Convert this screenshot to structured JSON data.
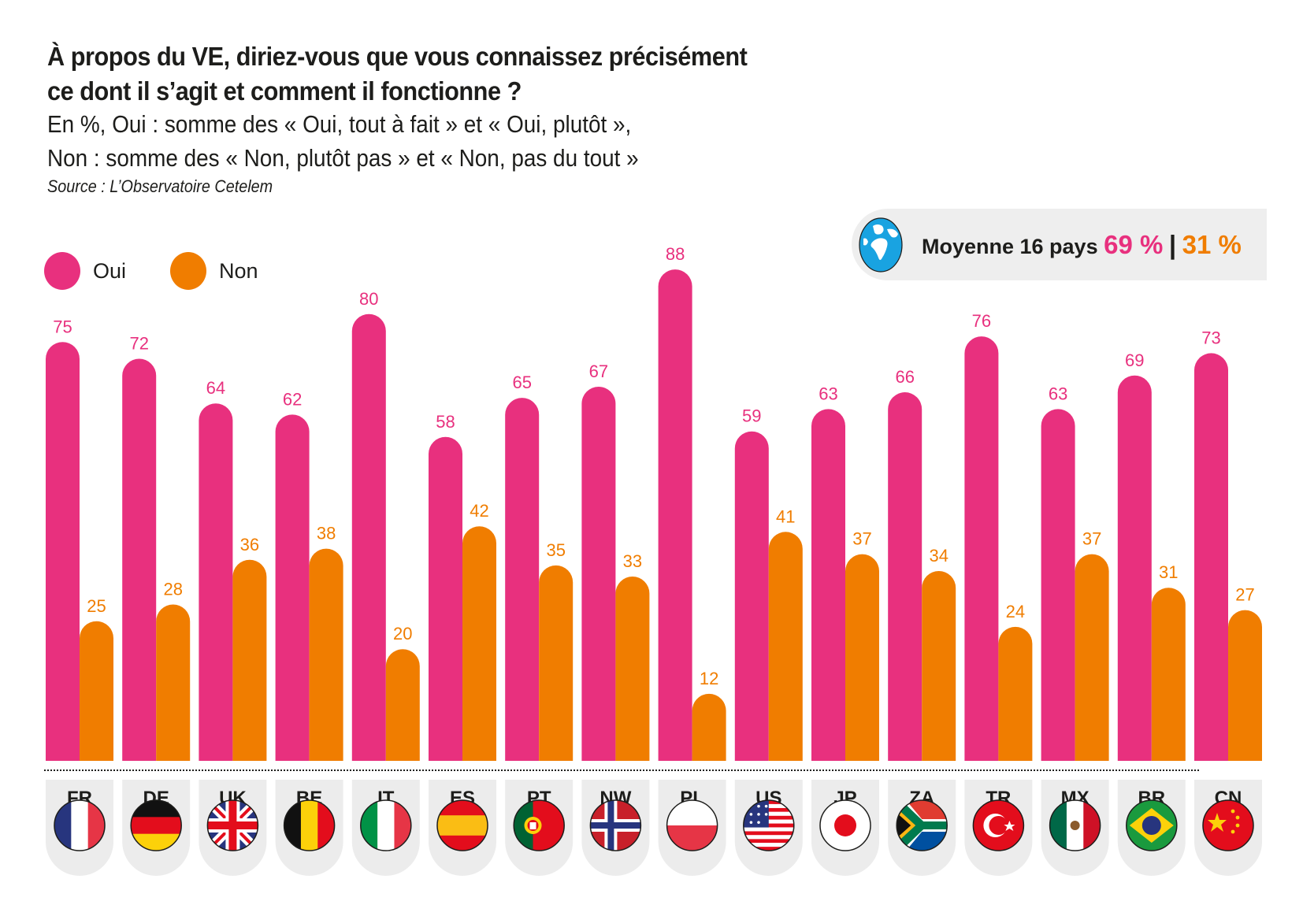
{
  "header": {
    "title": "À propos du VE, diriez-vous que vous connaissez précisément ce dont il s’agit et comment il fonctionne ?",
    "subtitle_line1": "En %, Oui : somme des « Oui, tout à fait » et « Oui, plutôt »,",
    "subtitle_line2": "Non : somme des « Non, plutôt pas » et « Non, pas du tout »",
    "source": "Source : L’Observatoire Cetelem"
  },
  "legend": [
    {
      "label": "Oui",
      "color": "#e8307e"
    },
    {
      "label": "Non",
      "color": "#f07d00"
    }
  ],
  "average": {
    "icon": "globe-icon",
    "label": "Moyenne 16 pays",
    "oui": "69 %",
    "separator": "|",
    "non": "31 %"
  },
  "colors": {
    "oui": "#e8307e",
    "non": "#f07d00",
    "tile": "#ececec"
  },
  "chart_data": {
    "type": "bar",
    "title": "À propos du VE, diriez-vous que vous connaissez précisément ce dont il s’agit et comment il fonctionne ?",
    "xlabel": "",
    "ylabel": "%",
    "ylim": [
      0,
      100
    ],
    "grid": false,
    "legend_position": "top-left",
    "categories": [
      "FR",
      "DE",
      "UK",
      "BE",
      "IT",
      "ES",
      "PT",
      "NW",
      "PL",
      "US",
      "JP",
      "ZA",
      "TR",
      "MX",
      "BR",
      "CN"
    ],
    "flags": [
      "france",
      "germany",
      "uk",
      "belgium",
      "italy",
      "spain",
      "portugal",
      "norway",
      "poland",
      "usa",
      "japan",
      "south-africa",
      "turkey",
      "mexico",
      "brazil",
      "china"
    ],
    "series": [
      {
        "name": "Oui",
        "color": "#e8307e",
        "values": [
          75,
          72,
          64,
          62,
          80,
          58,
          65,
          67,
          88,
          59,
          63,
          66,
          76,
          63,
          69,
          73
        ]
      },
      {
        "name": "Non",
        "color": "#f07d00",
        "values": [
          25,
          28,
          36,
          38,
          20,
          42,
          35,
          33,
          12,
          41,
          37,
          34,
          24,
          37,
          31,
          27
        ]
      }
    ]
  }
}
